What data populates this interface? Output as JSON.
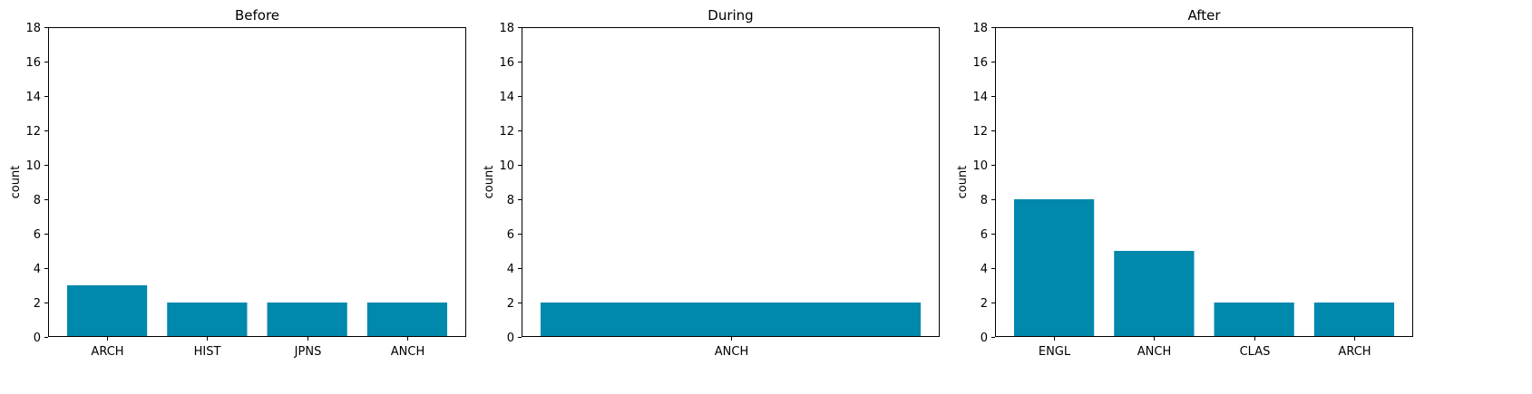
{
  "colors": {
    "bar": "#0088ad",
    "axis": "#000000",
    "background": "#ffffff"
  },
  "chart_data": [
    {
      "type": "bar",
      "title": "Before",
      "ylabel": "count",
      "xlabel": "",
      "categories": [
        "ARCH",
        "HIST",
        "JPNS",
        "ANCH"
      ],
      "values": [
        3,
        2,
        2,
        2
      ],
      "ylim": [
        0,
        18
      ],
      "yticks": [
        0,
        2,
        4,
        6,
        8,
        10,
        12,
        14,
        16,
        18
      ],
      "grid": false
    },
    {
      "type": "bar",
      "title": "During",
      "ylabel": "count",
      "xlabel": "",
      "categories": [
        "ANCH"
      ],
      "values": [
        2
      ],
      "ylim": [
        0,
        18
      ],
      "yticks": [
        0,
        2,
        4,
        6,
        8,
        10,
        12,
        14,
        16,
        18
      ],
      "grid": false
    },
    {
      "type": "bar",
      "title": "After",
      "ylabel": "count",
      "xlabel": "",
      "categories": [
        "ENGL",
        "ANCH",
        "CLAS",
        "ARCH"
      ],
      "values": [
        8,
        5,
        2,
        2
      ],
      "ylim": [
        0,
        18
      ],
      "yticks": [
        0,
        2,
        4,
        6,
        8,
        10,
        12,
        14,
        16,
        18
      ],
      "grid": false
    }
  ]
}
